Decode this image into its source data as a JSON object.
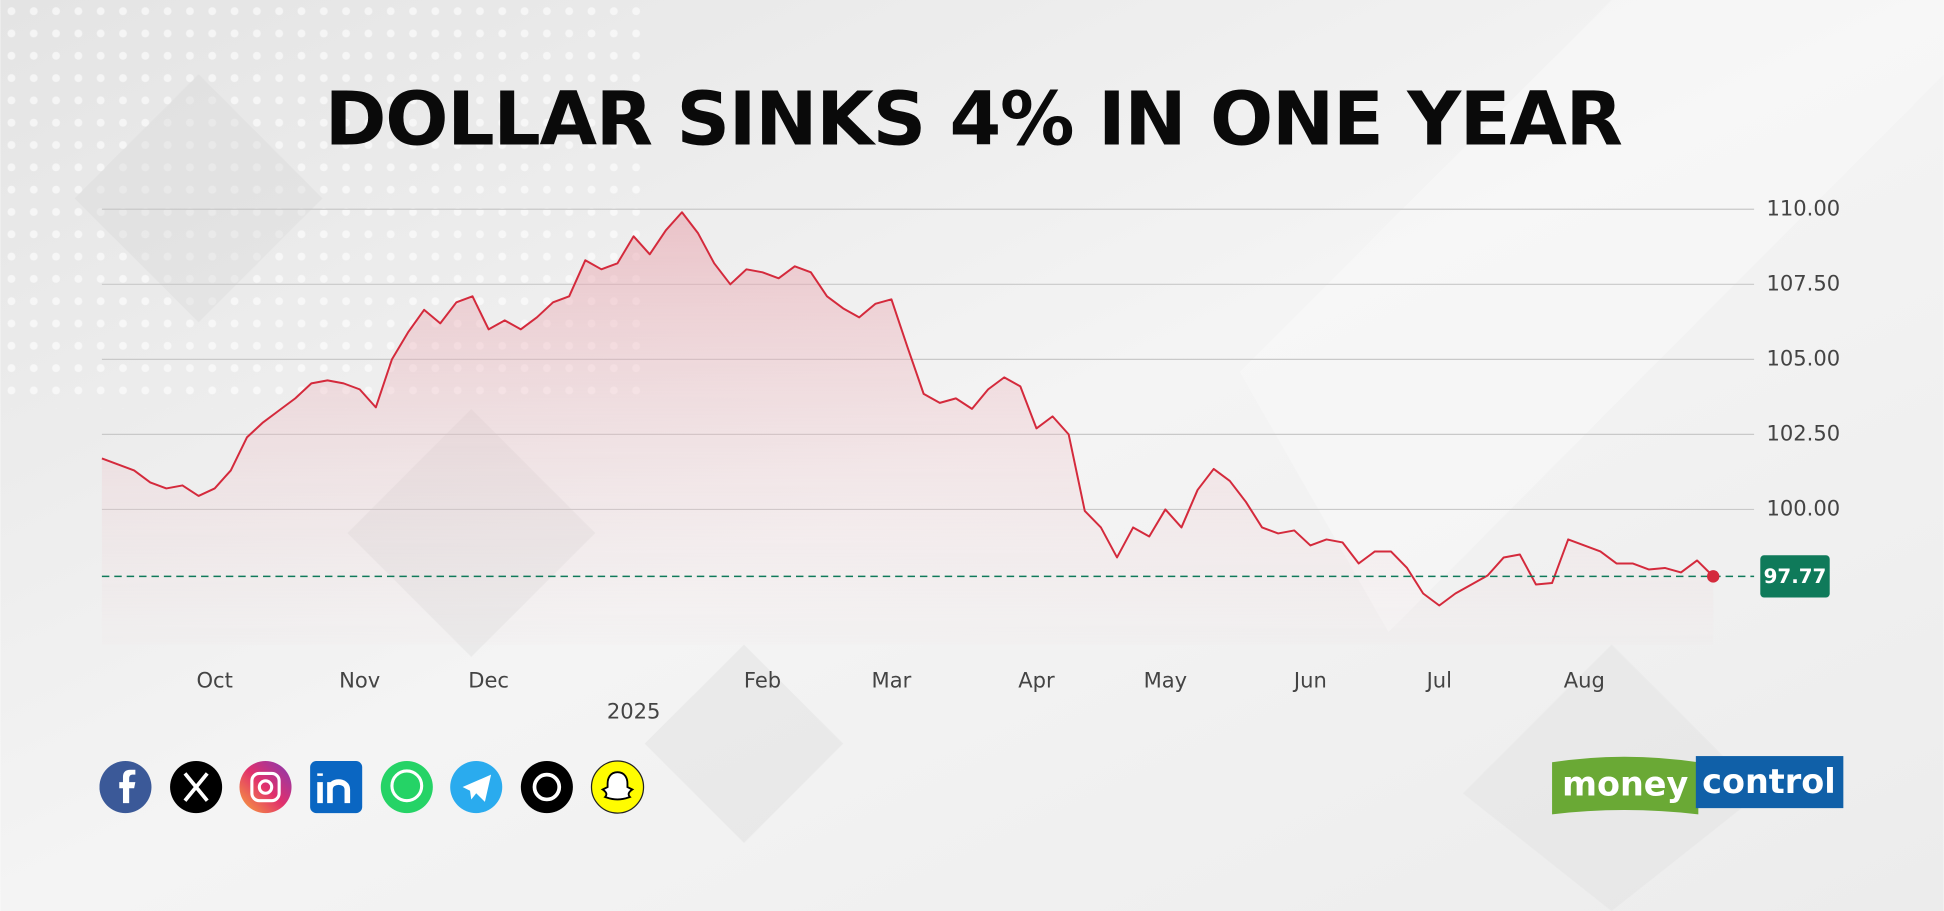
{
  "chart_data": {
    "type": "line",
    "title": "DOLLAR SINKS 4% IN ONE YEAR",
    "categories": [
      null,
      null,
      null,
      null,
      null,
      null,
      null,
      "Oct",
      null,
      null,
      null,
      null,
      null,
      null,
      null,
      null,
      "Nov",
      null,
      null,
      null,
      null,
      null,
      null,
      null,
      "Dec",
      null,
      null,
      null,
      null,
      null,
      null,
      null,
      null,
      "2025",
      null,
      null,
      null,
      null,
      null,
      null,
      null,
      "Feb",
      null,
      null,
      null,
      null,
      null,
      null,
      null,
      "Mar",
      null,
      null,
      null,
      null,
      null,
      null,
      null,
      null,
      "Apr",
      null,
      null,
      null,
      null,
      null,
      null,
      null,
      "May",
      null,
      null,
      null,
      null,
      null,
      null,
      null,
      null,
      "Jun",
      null,
      null,
      null,
      null,
      null,
      null,
      null,
      "Jul",
      null,
      null,
      null,
      null,
      null,
      null,
      null,
      null,
      "Aug",
      null,
      null,
      null,
      null,
      null,
      null,
      null,
      null
    ],
    "values": [
      101.7,
      101.5,
      101.3,
      100.9,
      100.7,
      100.8,
      100.45,
      100.7,
      101.3,
      102.4,
      102.9,
      103.3,
      103.7,
      104.2,
      104.3,
      104.2,
      104.0,
      103.4,
      105.0,
      105.9,
      106.65,
      106.2,
      106.9,
      107.1,
      106.0,
      106.3,
      106.0,
      106.4,
      106.9,
      107.1,
      108.3,
      108.0,
      108.2,
      109.1,
      108.5,
      109.3,
      109.9,
      109.2,
      108.2,
      107.5,
      108.0,
      107.9,
      107.7,
      108.1,
      107.9,
      107.1,
      106.7,
      106.4,
      106.85,
      107.0,
      105.4,
      103.85,
      103.55,
      103.7,
      103.35,
      104.0,
      104.4,
      104.1,
      102.7,
      103.1,
      102.5,
      99.95,
      99.4,
      98.4,
      99.4,
      99.1,
      100.0,
      99.4,
      100.65,
      101.35,
      100.95,
      100.25,
      99.4,
      99.2,
      99.3,
      98.8,
      99.0,
      98.9,
      98.2,
      98.6,
      98.6,
      98.05,
      97.2,
      96.8,
      97.2,
      97.5,
      97.8,
      98.4,
      98.5,
      97.5,
      97.55,
      99.0,
      98.8,
      98.6,
      98.2,
      98.2,
      98.0,
      98.05,
      97.9,
      98.3,
      97.77
    ],
    "color": "#d42a3c",
    "area": true,
    "grid": true,
    "ylim": [
      95.5,
      110.2
    ],
    "yticks": [
      {
        "value": 100,
        "label": "100.00"
      },
      {
        "value": 102.5,
        "label": "102.50"
      },
      {
        "value": 105,
        "label": "105.00"
      },
      {
        "value": 107.5,
        "label": "107.50"
      },
      {
        "value": 110,
        "label": "110.00"
      }
    ],
    "current_value": 97.77,
    "current_value_color": "#0f7a5a"
  },
  "logo": {
    "left": "money",
    "right": "control"
  }
}
